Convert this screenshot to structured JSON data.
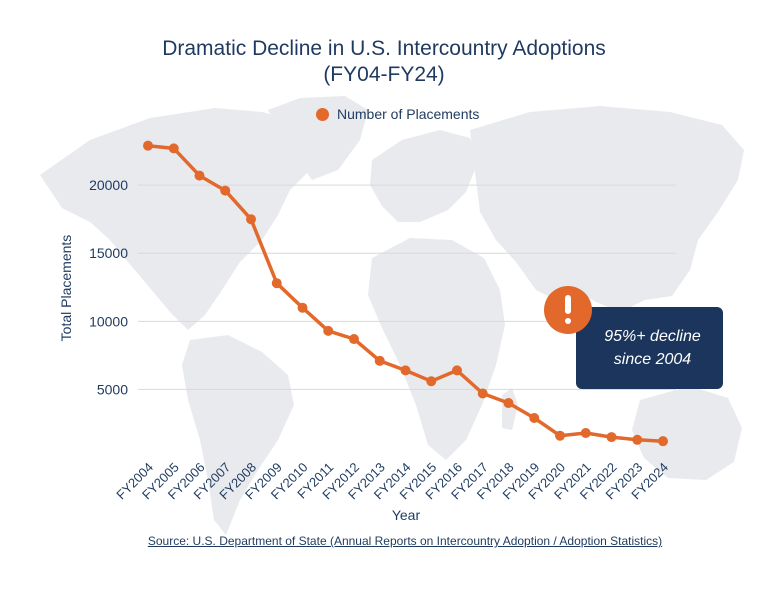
{
  "title_line1": "Dramatic Decline in U.S. Intercountry Adoptions",
  "title_line2": "(FY04-FY24)",
  "legend_label": "Number of Placements",
  "callout": {
    "line1": "95%+ decline",
    "line2": "since 2004"
  },
  "alert_icon": "exclamation-icon",
  "source_text": "Source: U.S. Department of State (Annual Reports on Intercountry Adoption / Adoption Statistics)",
  "colors": {
    "series": "#e2692b",
    "title": "#1f3a5f",
    "callout_bg": "#1b355c",
    "grid": "#d6d9de",
    "map": "#e8eaee"
  },
  "chart_data": {
    "type": "line",
    "title": "Dramatic Decline in U.S. Intercountry Adoptions (FY04-FY24)",
    "xlabel": "Year",
    "ylabel": "Total Placements",
    "categories": [
      "FY2004",
      "FY2005",
      "FY2006",
      "FY2007",
      "FY2008",
      "FY2009",
      "FY2010",
      "FY2011",
      "FY2012",
      "FY2013",
      "FY2014",
      "FY2015",
      "FY2016",
      "FY2017",
      "FY2018",
      "FY2019",
      "FY2020",
      "FY2021",
      "FY2022",
      "FY2023",
      "FY2024"
    ],
    "series": [
      {
        "name": "Number of Placements",
        "values": [
          22900,
          22700,
          20700,
          19600,
          17500,
          12800,
          11000,
          9300,
          8700,
          7100,
          6400,
          5600,
          6400,
          4700,
          4000,
          2900,
          1600,
          1800,
          1500,
          1300,
          1200
        ]
      }
    ],
    "yticks": [
      5000,
      10000,
      15000,
      20000
    ],
    "ylim": [
      0,
      23000
    ],
    "grid": true,
    "legend_position": "top-center"
  }
}
